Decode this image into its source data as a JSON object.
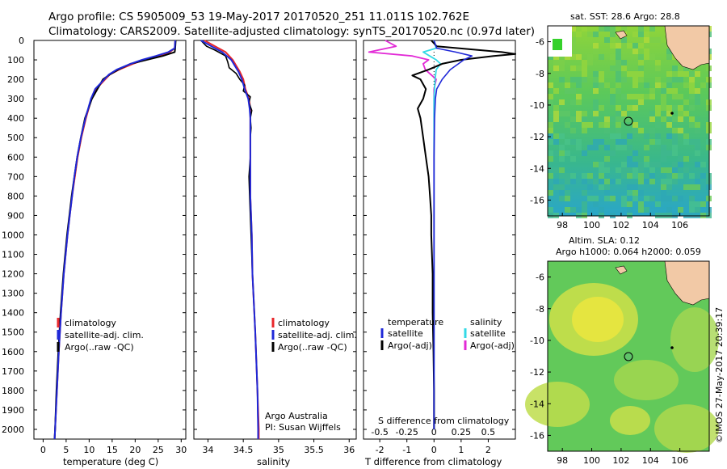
{
  "titles": {
    "line1": "Argo profile: CS 5905009_53 19-May-2017 20170520_251 11.011S 102.762E",
    "line2": "Climatology: CARS2009. Satellite-adjusted climatology: synTS_20170520.nc (0.97d later)"
  },
  "colors": {
    "clim": "#e8262a",
    "sat": "#1f28d8",
    "argo": "#000000",
    "sat_s": "#33d9e6",
    "argo_s": "#e22ad6"
  },
  "depth_ticks": [
    "0",
    "100",
    "200",
    "300",
    "400",
    "500",
    "600",
    "700",
    "800",
    "900",
    "1000",
    "1100",
    "1200",
    "1300",
    "1400",
    "1500",
    "1600",
    "1700",
    "1800",
    "1900",
    "2000"
  ],
  "panel_temp": {
    "xlabel": "temperature (deg C)",
    "xticks": [
      "0",
      "5",
      "10",
      "15",
      "20",
      "25",
      "30"
    ],
    "legend": [
      "climatology",
      "satellite-adj. clim.",
      "Argo(..raw -QC)"
    ]
  },
  "panel_sal": {
    "xlabel": "salinity",
    "xticks": [
      "34",
      "34.5",
      "35",
      "35.5",
      "36"
    ],
    "legend": [
      "climatology",
      "satellite-adj. clim.",
      "Argo(..raw -QC)"
    ],
    "credit1": "Argo Australia",
    "credit2": "PI: Susan Wijffels"
  },
  "panel_diff": {
    "xlabel": "T difference from climatology",
    "xticks": [
      "-2",
      "-1",
      "0",
      "1",
      "2"
    ],
    "top_label": "S difference from climatology",
    "top_ticks": [
      "-0.5",
      "-0.25",
      "0",
      "0.25",
      "0.5"
    ],
    "legend_t_head": "temperature",
    "legend_s_head": "salinity",
    "legend_sat": "satellite",
    "legend_argo": "Argo(-adj)"
  },
  "map_sst": {
    "title": "sat. SST: 28.6 Argo: 28.8",
    "xticks": [
      "98",
      "100",
      "102",
      "104",
      "106"
    ],
    "yticks": [
      "-6",
      "-8",
      "-10",
      "-12",
      "-14",
      "-16"
    ]
  },
  "map_sla": {
    "title1": "Altim. SLA: 0.12",
    "title2": "Argo h1000: 0.064 h2000: 0.059",
    "xticks": [
      "98",
      "100",
      "102",
      "104",
      "106"
    ],
    "yticks": [
      "-6",
      "-8",
      "-10",
      "-12",
      "-14",
      "-16"
    ]
  },
  "footer": "©IMOS 27-May-2017 20:39:17",
  "chart_data": [
    {
      "type": "line",
      "xlabel": "temperature (deg C)",
      "ylabel": "",
      "xlim": [
        -2,
        31
      ],
      "ylim": [
        2050,
        0
      ],
      "series": [
        {
          "name": "climatology",
          "depth": [
            0,
            40,
            60,
            80,
            100,
            120,
            150,
            175,
            200,
            250,
            300,
            400,
            500,
            600,
            700,
            800,
            900,
            1000,
            1200,
            1400,
            1600,
            1800,
            2000,
            2050
          ],
          "values": [
            28.7,
            28.6,
            27.5,
            25.0,
            22.0,
            19.5,
            16.5,
            14.5,
            13.5,
            11.5,
            10.5,
            9.3,
            8.3,
            7.5,
            6.9,
            6.3,
            5.8,
            5.3,
            4.5,
            3.9,
            3.4,
            3.0,
            2.6,
            2.5
          ]
        },
        {
          "name": "satellite-adj. clim.",
          "depth": [
            0,
            40,
            60,
            80,
            100,
            120,
            150,
            175,
            200,
            250,
            300,
            400,
            500,
            600,
            700,
            800,
            900,
            1000,
            1200,
            1400,
            1600,
            1800,
            2000,
            2050
          ],
          "values": [
            28.7,
            28.6,
            27.2,
            24.5,
            21.5,
            19.0,
            16.0,
            14.3,
            13.3,
            11.3,
            10.4,
            9.2,
            8.2,
            7.4,
            6.8,
            6.3,
            5.8,
            5.3,
            4.5,
            3.9,
            3.4,
            3.0,
            2.6,
            2.5
          ]
        },
        {
          "name": "Argo(..raw -QC)",
          "depth": [
            0,
            40,
            60,
            80,
            100,
            120,
            150,
            175,
            200,
            250,
            300,
            400,
            500,
            600,
            700,
            800,
            900,
            1000,
            1200,
            1400,
            1600,
            1800,
            2000,
            2050
          ],
          "values": [
            28.8,
            28.7,
            28.6,
            26.0,
            22.5,
            19.0,
            16.3,
            14.5,
            13.0,
            11.8,
            10.6,
            9.1,
            8.2,
            7.4,
            6.8,
            6.2,
            5.7,
            5.2,
            4.4,
            3.8,
            3.3,
            2.9,
            2.6,
            2.5
          ]
        }
      ]
    },
    {
      "type": "line",
      "xlabel": "salinity",
      "ylabel": "",
      "xlim": [
        33.8,
        36.1
      ],
      "ylim": [
        2050,
        0
      ],
      "series": [
        {
          "name": "climatology",
          "depth": [
            0,
            30,
            60,
            100,
            130,
            160,
            200,
            250,
            300,
            350,
            400,
            500,
            600,
            800,
            1000,
            1200,
            1500,
            1800,
            2000,
            2050
          ],
          "values": [
            33.95,
            34.1,
            34.25,
            34.35,
            34.4,
            34.45,
            34.5,
            34.53,
            34.58,
            34.6,
            34.6,
            34.6,
            34.6,
            34.6,
            34.62,
            34.63,
            34.67,
            34.7,
            34.72,
            34.72
          ]
        },
        {
          "name": "satellite-adj. clim.",
          "depth": [
            0,
            30,
            60,
            100,
            130,
            160,
            200,
            250,
            300,
            350,
            400,
            500,
            600,
            800,
            1000,
            1200,
            1500,
            1800,
            2000,
            2050
          ],
          "values": [
            33.9,
            34.05,
            34.2,
            34.33,
            34.38,
            34.43,
            34.48,
            34.52,
            34.57,
            34.59,
            34.6,
            34.6,
            34.6,
            34.6,
            34.62,
            34.63,
            34.67,
            34.7,
            34.71,
            34.71
          ]
        },
        {
          "name": "Argo(..raw -QC)",
          "depth": [
            0,
            30,
            50,
            80,
            110,
            140,
            170,
            200,
            230,
            260,
            290,
            320,
            360,
            400,
            450,
            500,
            600,
            700,
            800,
            900,
            1000,
            1200,
            1500,
            1800,
            2000
          ],
          "values": [
            33.9,
            33.98,
            34.1,
            34.25,
            34.28,
            34.3,
            34.4,
            34.45,
            34.52,
            34.5,
            34.6,
            34.58,
            34.62,
            34.6,
            34.61,
            34.6,
            34.6,
            34.58,
            34.59,
            34.6,
            34.61,
            34.63,
            34.67,
            34.7,
            34.71
          ]
        }
      ]
    },
    {
      "type": "line",
      "xlabel": "T difference from climatology",
      "ylabel": "",
      "xlim": [
        -2.6,
        3.0
      ],
      "ylim": [
        2050,
        0
      ],
      "series": [
        {
          "name": "temperature satellite",
          "depth": [
            0,
            40,
            60,
            80,
            100,
            120,
            150,
            200,
            250,
            300,
            400,
            600,
            800,
            1000,
            1500,
            2000
          ],
          "values": [
            0,
            0.1,
            0.8,
            1.4,
            1.1,
            0.9,
            0.6,
            0.3,
            0.1,
            0.05,
            0.02,
            0.0,
            0.0,
            0.0,
            0.0,
            0.0
          ]
        },
        {
          "name": "temperature Argo(-adj)",
          "depth": [
            0,
            30,
            60,
            70,
            80,
            100,
            120,
            150,
            180,
            200,
            250,
            300,
            350,
            400,
            500,
            600,
            700,
            800,
            900,
            1000,
            1200,
            1400,
            1600,
            1800,
            2000
          ],
          "values": [
            -0.1,
            0.1,
            2.5,
            3.0,
            2.2,
            1.0,
            0.3,
            -0.2,
            -0.8,
            -0.5,
            -0.3,
            -0.4,
            -0.6,
            -0.5,
            -0.4,
            -0.3,
            -0.2,
            -0.15,
            -0.1,
            -0.1,
            -0.05,
            -0.05,
            -0.02,
            0.0,
            0.0
          ]
        },
        {
          "name": "salinity satellite",
          "depth": [
            0,
            40,
            60,
            80,
            100,
            120,
            150,
            200,
            300,
            400,
            600,
            1000,
            1500,
            2000
          ],
          "values": [
            0,
            0.02,
            -0.1,
            -0.04,
            0.02,
            0.06,
            0.02,
            0.01,
            0.0,
            0.0,
            0.0,
            0.0,
            0.0,
            0.0
          ]
        },
        {
          "name": "salinity Argo(-adj)",
          "depth": [
            0,
            30,
            60,
            80,
            100,
            120,
            150,
            200,
            250,
            300,
            400,
            600,
            1000,
            1500,
            2000
          ],
          "values": [
            -0.45,
            -0.35,
            -0.6,
            -0.2,
            -0.05,
            -0.1,
            -0.08,
            0.02,
            0.0,
            0.0,
            0.0,
            0.0,
            0.0,
            0.0,
            0.0
          ]
        }
      ]
    }
  ]
}
